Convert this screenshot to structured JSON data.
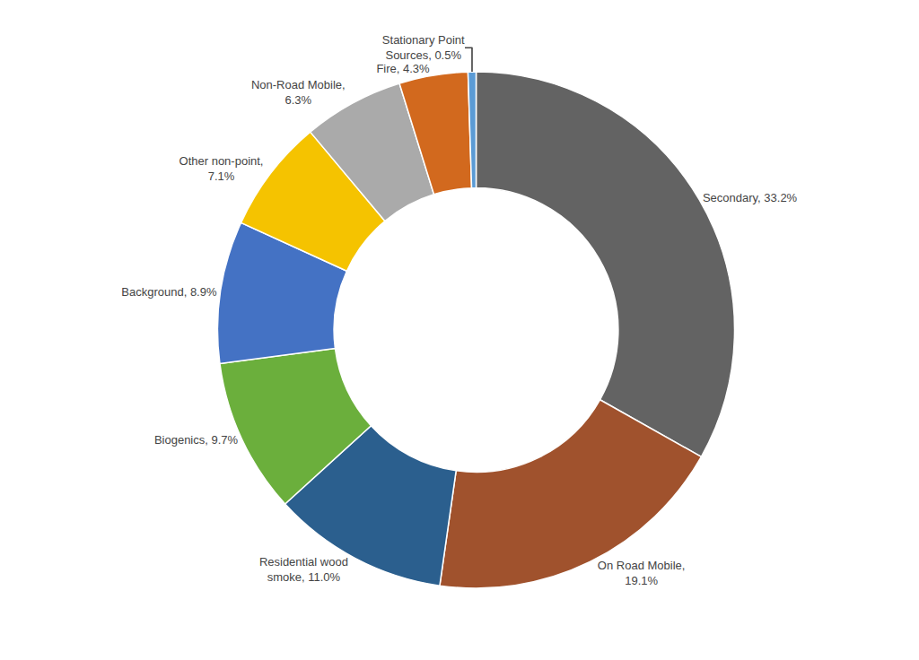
{
  "chart_data": {
    "type": "pie",
    "categories": [
      "Secondary, 33.2%",
      "On Road Mobile,\n19.1%",
      "Residential wood\nsmoke, 11.0%",
      "Biogenics, 9.7%",
      "Background, 8.9%",
      "Other non-point,\n7.1%",
      "Non-Road Mobile,\n6.3%",
      "Fire, 4.3%",
      "Stationary Point\nSources, 0.5%"
    ],
    "values": [
      33.2,
      19.1,
      11.0,
      9.7,
      8.9,
      7.1,
      6.3,
      4.3,
      0.5
    ],
    "colors": [
      "#636363",
      "#A0522D",
      "#2B5F8E",
      "#6BAF3C",
      "#4472C4",
      "#F5C300",
      "#AAAAAA",
      "#D2691E",
      "#5B9BD5"
    ]
  }
}
